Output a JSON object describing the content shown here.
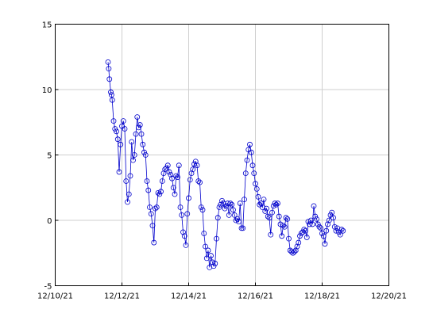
{
  "chart_data": {
    "type": "line",
    "title": "",
    "xlabel": "",
    "ylabel": "",
    "xlim": [
      "2021-12-10",
      "2021-12-20"
    ],
    "ylim": [
      -5,
      15
    ],
    "grid": true,
    "legend": "none",
    "x_tick_labels": [
      "12/10/21",
      "12/12/21",
      "12/14/21",
      "12/16/21",
      "12/18/21",
      "12/20/21"
    ],
    "x_tick_dates": [
      "2021-12-10",
      "2021-12-12",
      "2021-12-14",
      "2021-12-16",
      "2021-12-18",
      "2021-12-20"
    ],
    "y_ticks": [
      -5,
      0,
      5,
      10,
      15
    ],
    "series": [
      {
        "color": "#0000cc",
        "marker": "circle",
        "points": [
          [
            "2021-12-11T14:00",
            12.1
          ],
          [
            "2021-12-11T14:30",
            11.6
          ],
          [
            "2021-12-11T15:00",
            10.8
          ],
          [
            "2021-12-11T16:00",
            9.8
          ],
          [
            "2021-12-11T16:30",
            9.6
          ],
          [
            "2021-12-11T17:00",
            9.2
          ],
          [
            "2021-12-11T18:00",
            7.6
          ],
          [
            "2021-12-11T19:00",
            7.0
          ],
          [
            "2021-12-11T20:00",
            6.8
          ],
          [
            "2021-12-11T21:00",
            6.2
          ],
          [
            "2021-12-11T22:00",
            3.7
          ],
          [
            "2021-12-11T23:00",
            5.8
          ],
          [
            "2021-12-12T00:00",
            7.2
          ],
          [
            "2021-12-12T01:00",
            7.6
          ],
          [
            "2021-12-12T02:00",
            7.0
          ],
          [
            "2021-12-12T03:00",
            3.0
          ],
          [
            "2021-12-12T04:00",
            1.4
          ],
          [
            "2021-12-12T05:00",
            2.0
          ],
          [
            "2021-12-12T06:00",
            3.4
          ],
          [
            "2021-12-12T07:00",
            6.0
          ],
          [
            "2021-12-12T08:00",
            4.6
          ],
          [
            "2021-12-12T09:00",
            5.0
          ],
          [
            "2021-12-12T10:00",
            6.6
          ],
          [
            "2021-12-12T11:00",
            7.9
          ],
          [
            "2021-12-12T12:00",
            7.1
          ],
          [
            "2021-12-12T13:00",
            7.3
          ],
          [
            "2021-12-12T14:00",
            6.6
          ],
          [
            "2021-12-12T15:00",
            5.8
          ],
          [
            "2021-12-12T16:00",
            5.2
          ],
          [
            "2021-12-12T17:00",
            5.0
          ],
          [
            "2021-12-12T18:00",
            3.0
          ],
          [
            "2021-12-12T19:00",
            2.3
          ],
          [
            "2021-12-12T20:00",
            1.0
          ],
          [
            "2021-12-12T21:00",
            0.5
          ],
          [
            "2021-12-12T22:00",
            -0.4
          ],
          [
            "2021-12-12T23:00",
            -1.7
          ],
          [
            "2021-12-13T00:00",
            0.9
          ],
          [
            "2021-12-13T01:00",
            1.0
          ],
          [
            "2021-12-13T02:00",
            2.1
          ],
          [
            "2021-12-13T03:00",
            2.0
          ],
          [
            "2021-12-13T04:00",
            2.2
          ],
          [
            "2021-12-13T05:00",
            3.0
          ],
          [
            "2021-12-13T06:00",
            3.6
          ],
          [
            "2021-12-13T07:00",
            3.9
          ],
          [
            "2021-12-13T08:00",
            4.0
          ],
          [
            "2021-12-13T09:00",
            4.2
          ],
          [
            "2021-12-13T10:00",
            3.7
          ],
          [
            "2021-12-13T11:00",
            3.5
          ],
          [
            "2021-12-13T12:00",
            3.2
          ],
          [
            "2021-12-13T13:00",
            2.5
          ],
          [
            "2021-12-13T14:00",
            2.0
          ],
          [
            "2021-12-13T15:00",
            3.4
          ],
          [
            "2021-12-13T16:00",
            3.3
          ],
          [
            "2021-12-13T17:00",
            4.2
          ],
          [
            "2021-12-13T18:00",
            1.0
          ],
          [
            "2021-12-13T19:00",
            0.4
          ],
          [
            "2021-12-13T20:00",
            -0.9
          ],
          [
            "2021-12-13T21:00",
            -1.2
          ],
          [
            "2021-12-13T22:00",
            -1.9
          ],
          [
            "2021-12-13T23:00",
            0.5
          ],
          [
            "2021-12-14T00:00",
            1.7
          ],
          [
            "2021-12-14T01:00",
            3.1
          ],
          [
            "2021-12-14T02:00",
            3.6
          ],
          [
            "2021-12-14T03:00",
            3.9
          ],
          [
            "2021-12-14T04:00",
            4.3
          ],
          [
            "2021-12-14T05:00",
            4.5
          ],
          [
            "2021-12-14T06:00",
            4.2
          ],
          [
            "2021-12-14T07:00",
            3.0
          ],
          [
            "2021-12-14T08:00",
            2.9
          ],
          [
            "2021-12-14T09:00",
            1.0
          ],
          [
            "2021-12-14T10:00",
            0.8
          ],
          [
            "2021-12-14T11:00",
            -1.0
          ],
          [
            "2021-12-14T12:00",
            -2.0
          ],
          [
            "2021-12-14T13:00",
            -2.9
          ],
          [
            "2021-12-14T14:00",
            -2.3
          ],
          [
            "2021-12-14T15:00",
            -3.6
          ],
          [
            "2021-12-14T16:00",
            -2.7
          ],
          [
            "2021-12-14T17:00",
            -3.2
          ],
          [
            "2021-12-14T18:00",
            -3.5
          ],
          [
            "2021-12-14T19:00",
            -3.3
          ],
          [
            "2021-12-14T20:00",
            -1.4
          ],
          [
            "2021-12-14T21:00",
            0.2
          ],
          [
            "2021-12-14T22:00",
            1.0
          ],
          [
            "2021-12-14T23:00",
            1.2
          ],
          [
            "2021-12-15T00:00",
            1.5
          ],
          [
            "2021-12-15T01:00",
            1.3
          ],
          [
            "2021-12-15T02:00",
            0.9
          ],
          [
            "2021-12-15T03:00",
            1.1
          ],
          [
            "2021-12-15T04:00",
            1.3
          ],
          [
            "2021-12-15T05:00",
            0.4
          ],
          [
            "2021-12-15T06:00",
            1.3
          ],
          [
            "2021-12-15T07:00",
            1.2
          ],
          [
            "2021-12-15T08:00",
            0.8
          ],
          [
            "2021-12-15T09:00",
            0.4
          ],
          [
            "2021-12-15T10:00",
            0.0
          ],
          [
            "2021-12-15T11:00",
            0.1
          ],
          [
            "2021-12-15T12:00",
            -0.1
          ],
          [
            "2021-12-15T13:00",
            1.3
          ],
          [
            "2021-12-15T14:00",
            -0.6
          ],
          [
            "2021-12-15T15:00",
            -0.6
          ],
          [
            "2021-12-15T16:00",
            1.6
          ],
          [
            "2021-12-15T17:00",
            3.6
          ],
          [
            "2021-12-15T18:00",
            4.6
          ],
          [
            "2021-12-15T19:00",
            5.4
          ],
          [
            "2021-12-15T20:00",
            5.8
          ],
          [
            "2021-12-15T21:00",
            5.2
          ],
          [
            "2021-12-15T22:00",
            4.2
          ],
          [
            "2021-12-15T23:00",
            3.6
          ],
          [
            "2021-12-16T00:00",
            2.8
          ],
          [
            "2021-12-16T01:00",
            2.4
          ],
          [
            "2021-12-16T02:00",
            1.8
          ],
          [
            "2021-12-16T03:00",
            1.2
          ],
          [
            "2021-12-16T04:00",
            1.3
          ],
          [
            "2021-12-16T05:00",
            1.0
          ],
          [
            "2021-12-16T06:00",
            1.6
          ],
          [
            "2021-12-16T07:00",
            0.7
          ],
          [
            "2021-12-16T08:00",
            0.9
          ],
          [
            "2021-12-16T09:00",
            0.3
          ],
          [
            "2021-12-16T10:00",
            0.2
          ],
          [
            "2021-12-16T11:00",
            -1.1
          ],
          [
            "2021-12-16T12:00",
            0.6
          ],
          [
            "2021-12-16T13:00",
            1.1
          ],
          [
            "2021-12-16T14:00",
            1.3
          ],
          [
            "2021-12-16T15:00",
            1.2
          ],
          [
            "2021-12-16T16:00",
            1.3
          ],
          [
            "2021-12-16T17:00",
            0.3
          ],
          [
            "2021-12-16T18:00",
            -0.3
          ],
          [
            "2021-12-16T19:00",
            -1.2
          ],
          [
            "2021-12-16T20:00",
            -0.4
          ],
          [
            "2021-12-16T21:00",
            -0.5
          ],
          [
            "2021-12-16T22:00",
            0.2
          ],
          [
            "2021-12-16T23:00",
            0.1
          ],
          [
            "2021-12-17T00:00",
            -1.4
          ],
          [
            "2021-12-17T01:00",
            -2.3
          ],
          [
            "2021-12-17T02:00",
            -2.4
          ],
          [
            "2021-12-17T03:00",
            -2.5
          ],
          [
            "2021-12-17T04:00",
            -2.4
          ],
          [
            "2021-12-17T05:00",
            -2.3
          ],
          [
            "2021-12-17T06:00",
            -2.0
          ],
          [
            "2021-12-17T07:00",
            -1.7
          ],
          [
            "2021-12-17T08:00",
            -1.2
          ],
          [
            "2021-12-17T09:00",
            -1.0
          ],
          [
            "2021-12-17T10:00",
            -0.9
          ],
          [
            "2021-12-17T11:00",
            -0.7
          ],
          [
            "2021-12-17T12:00",
            -0.8
          ],
          [
            "2021-12-17T13:00",
            -1.3
          ],
          [
            "2021-12-17T14:00",
            -0.1
          ],
          [
            "2021-12-17T15:00",
            -0.3
          ],
          [
            "2021-12-17T16:00",
            0.0
          ],
          [
            "2021-12-17T17:00",
            -0.3
          ],
          [
            "2021-12-17T18:00",
            1.1
          ],
          [
            "2021-12-17T19:00",
            0.3
          ],
          [
            "2021-12-17T20:00",
            0.1
          ],
          [
            "2021-12-17T21:00",
            -0.3
          ],
          [
            "2021-12-17T22:00",
            -0.5
          ],
          [
            "2021-12-17T23:00",
            -0.6
          ],
          [
            "2021-12-18T00:00",
            -1.0
          ],
          [
            "2021-12-18T01:00",
            -1.2
          ],
          [
            "2021-12-18T02:00",
            -1.8
          ],
          [
            "2021-12-18T03:00",
            -0.8
          ],
          [
            "2021-12-18T04:00",
            -0.3
          ],
          [
            "2021-12-18T05:00",
            0.0
          ],
          [
            "2021-12-18T06:00",
            0.4
          ],
          [
            "2021-12-18T07:00",
            0.6
          ],
          [
            "2021-12-18T08:00",
            0.2
          ],
          [
            "2021-12-18T09:00",
            -0.5
          ],
          [
            "2021-12-18T10:00",
            -0.8
          ],
          [
            "2021-12-18T11:00",
            -0.6
          ],
          [
            "2021-12-18T12:00",
            -0.9
          ],
          [
            "2021-12-18T13:00",
            -1.1
          ],
          [
            "2021-12-18T14:00",
            -0.7
          ],
          [
            "2021-12-18T15:00",
            -0.8
          ]
        ]
      }
    ]
  }
}
